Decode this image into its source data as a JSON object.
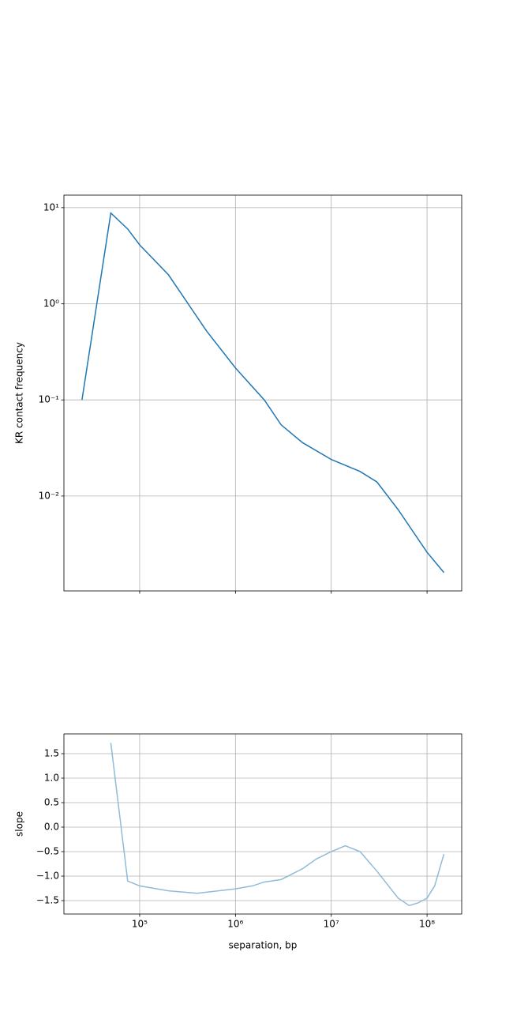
{
  "chart_data": [
    {
      "type": "line",
      "ylabel": "KR contact frequency",
      "xscale": "log",
      "yscale": "log",
      "grid": true,
      "show_xticklabels": false,
      "color": "#1f77b4",
      "x": [
        25000,
        50000,
        75000,
        100000,
        200000,
        500000,
        1000000,
        2000000,
        3000000,
        5000000,
        10000000,
        20000000,
        30000000,
        50000000,
        100000000,
        150000000
      ],
      "values": [
        0.1,
        8.8,
        6,
        4.1,
        2.0,
        0.52,
        0.215,
        0.1,
        0.055,
        0.036,
        0.024,
        0.018,
        0.014,
        0.0072,
        0.0026,
        0.0016
      ],
      "xlim": [
        16200,
        230000000
      ],
      "ylim": [
        0.00103,
        13.5
      ],
      "xticks": [
        100000,
        1000000,
        10000000,
        100000000
      ],
      "yticks": [
        {
          "value": 0.01,
          "label": "10⁻²"
        },
        {
          "value": 0.1,
          "label": "10⁻¹"
        },
        {
          "value": 1,
          "label": "10⁰"
        },
        {
          "value": 10,
          "label": "10¹"
        }
      ]
    },
    {
      "type": "line",
      "xlabel": "separation, bp",
      "ylabel": "slope",
      "xscale": "log",
      "yscale": "linear",
      "grid": true,
      "show_xticklabels": true,
      "color": "#8fbbd9",
      "x": [
        50000,
        75000,
        100000,
        200000,
        400000,
        1000000,
        1500000,
        2000000,
        3000000,
        5000000,
        7000000,
        10000000,
        14000000,
        20000000,
        30000000,
        50000000,
        65000000,
        80000000,
        100000000,
        120000000,
        150000000
      ],
      "values": [
        1.72,
        -1.1,
        -1.2,
        -1.3,
        -1.35,
        -1.26,
        -1.2,
        -1.12,
        -1.07,
        -0.85,
        -0.65,
        -0.5,
        -0.38,
        -0.5,
        -0.9,
        -1.45,
        -1.6,
        -1.55,
        -1.45,
        -1.2,
        -0.55
      ],
      "xlim": [
        16200,
        230000000
      ],
      "ylim": [
        -1.774,
        1.903
      ],
      "xticks": [
        {
          "value": 100000,
          "label": "10⁵"
        },
        {
          "value": 1000000,
          "label": "10⁶"
        },
        {
          "value": 10000000,
          "label": "10⁷"
        },
        {
          "value": 100000000,
          "label": "10⁸"
        }
      ],
      "yticks": [
        {
          "value": -1.5,
          "label": "−1.5"
        },
        {
          "value": -1,
          "label": "−1.0"
        },
        {
          "value": -0.5,
          "label": "−0.5"
        },
        {
          "value": 0,
          "label": "0.0"
        },
        0.5,
        {
          "value": 1,
          "label": "1.0"
        },
        1.5
      ]
    }
  ]
}
